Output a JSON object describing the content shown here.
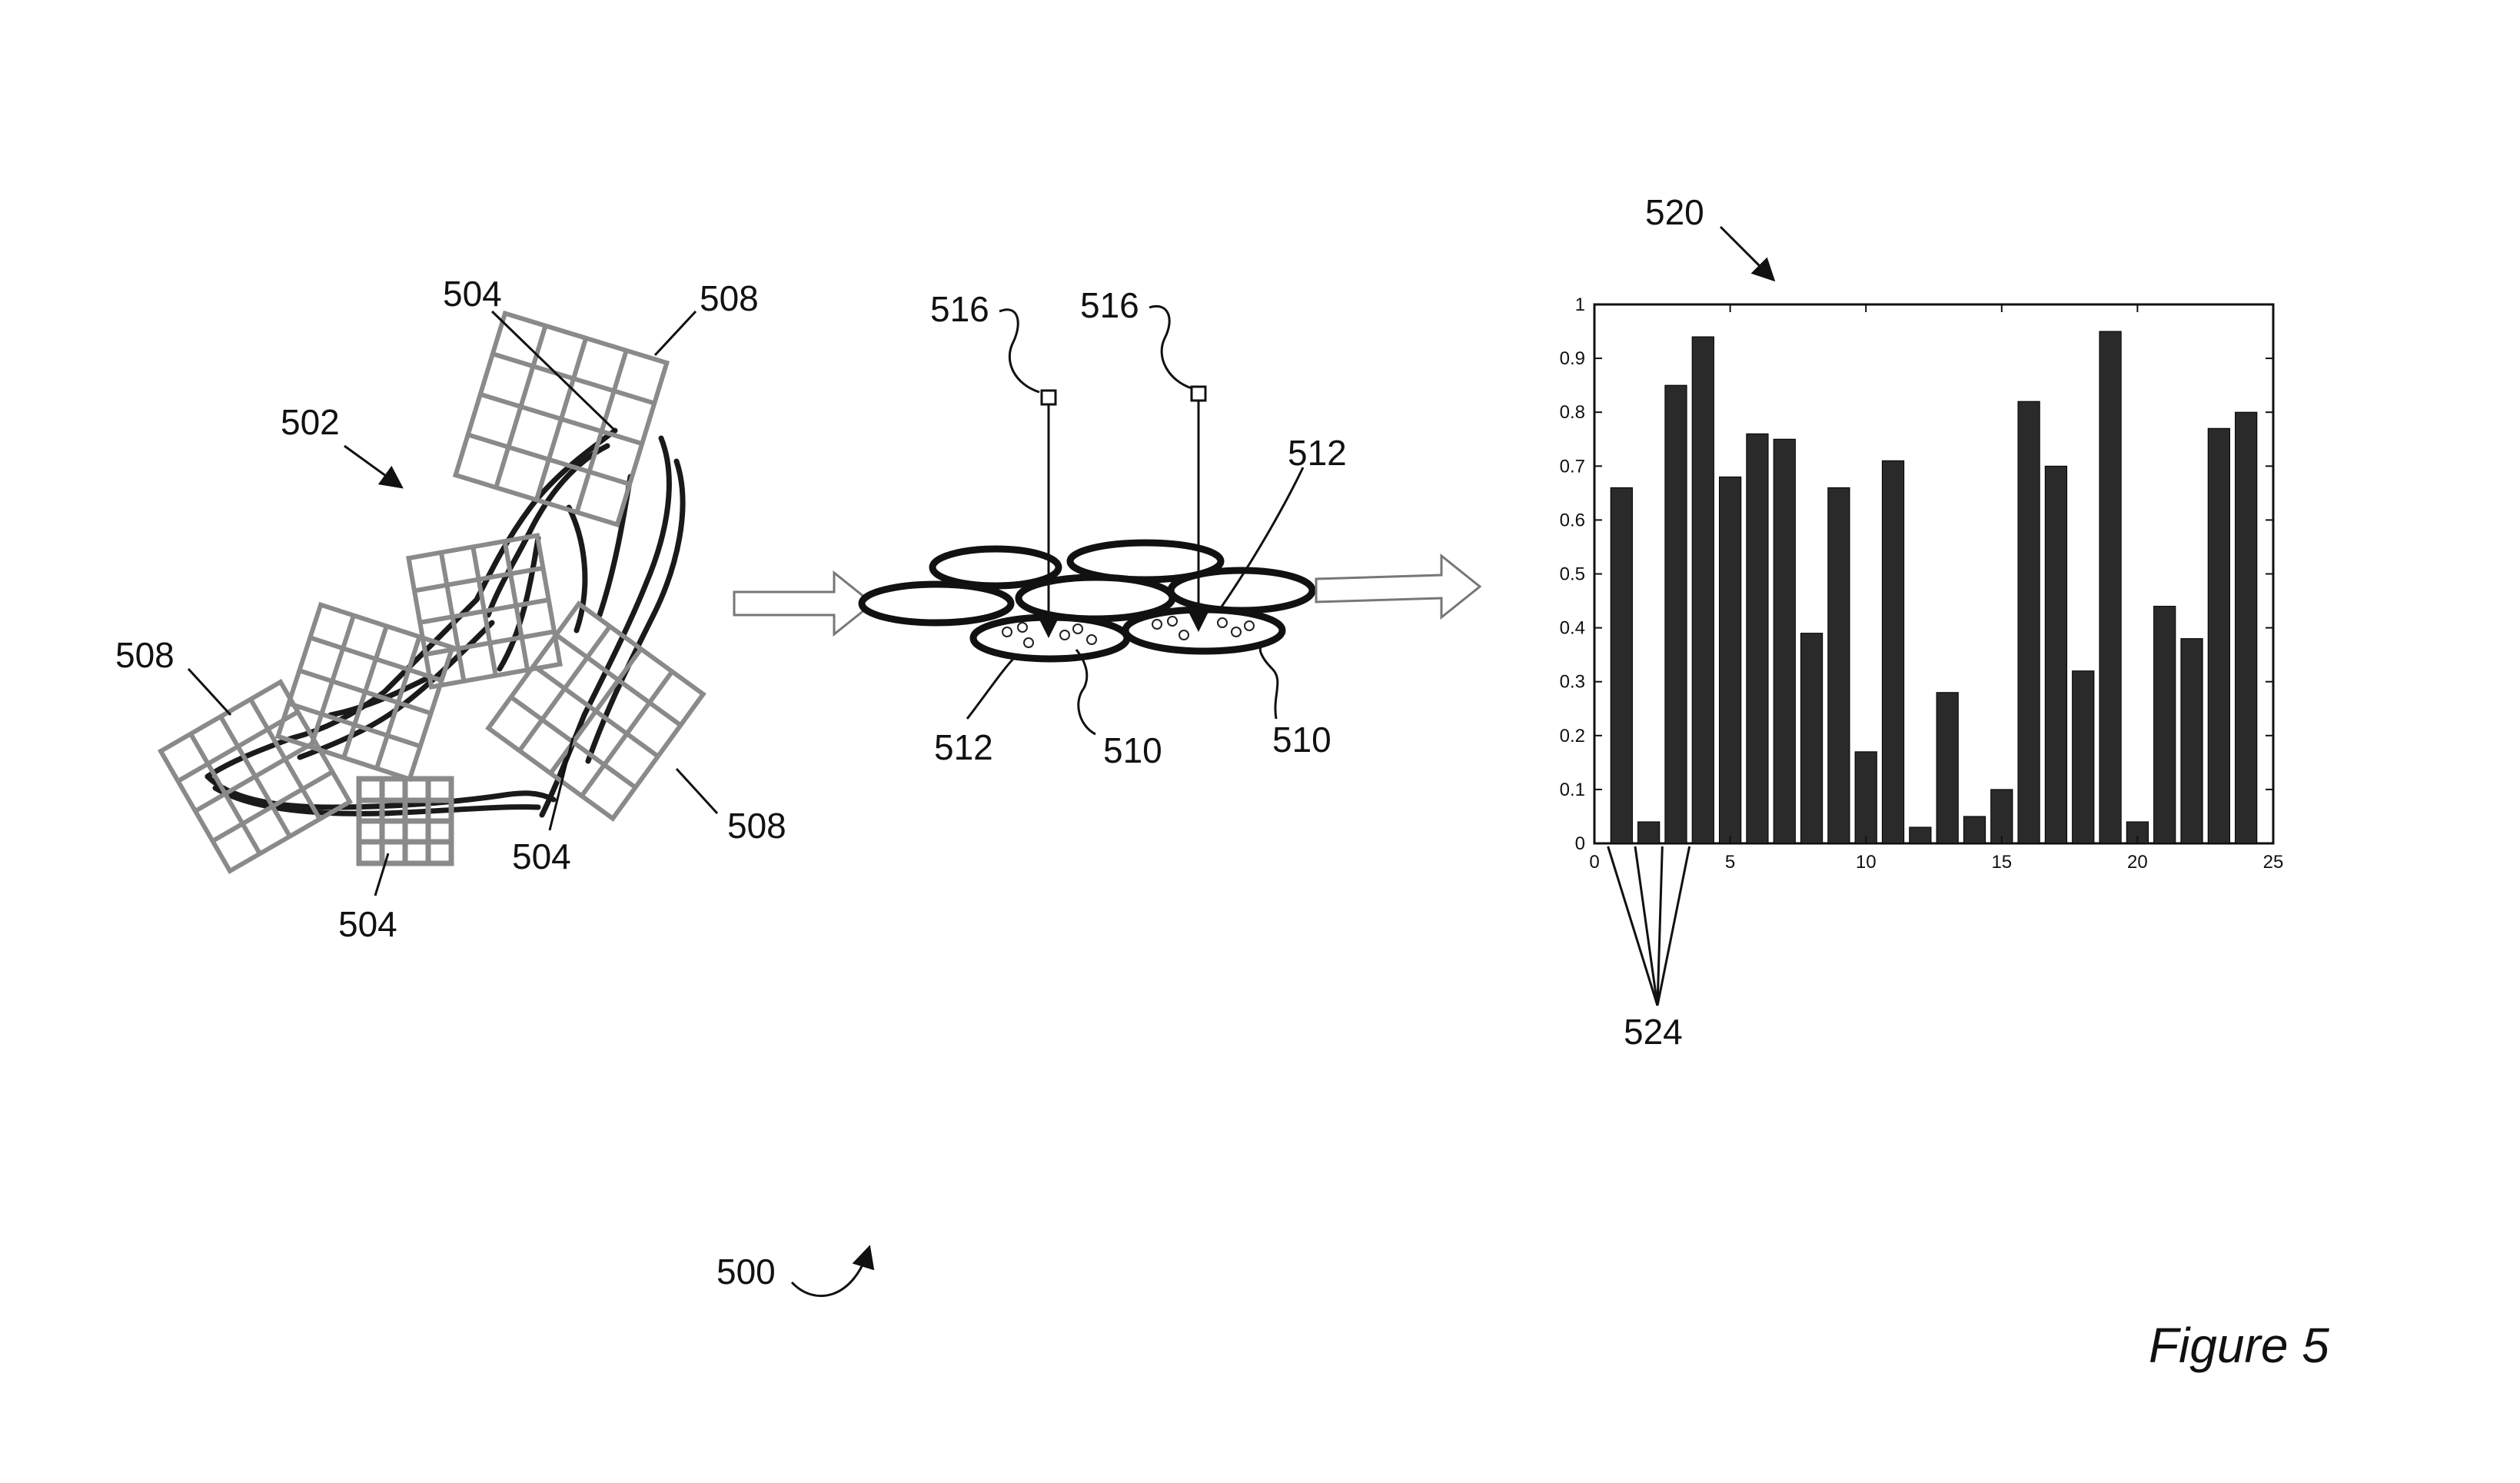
{
  "figure_caption": "Figure 5",
  "labels": {
    "overall": "500",
    "image": "502",
    "region": "504",
    "descriptor_grid": "508",
    "cluster_points": "510",
    "cluster": "512",
    "cluster_center": "516",
    "histogram": "520",
    "histogram_bins": "524"
  },
  "icons": [
    "shoe-sketch",
    "grid-patch",
    "arrow-right",
    "cluster-ellipse",
    "curved-arrow"
  ],
  "chart_data": {
    "type": "bar",
    "title": "",
    "xlabel": "",
    "ylabel": "",
    "xlim": [
      0,
      25
    ],
    "ylim": [
      0,
      1
    ],
    "x_ticks": [
      "0",
      "5",
      "10",
      "15",
      "20",
      "25"
    ],
    "y_ticks": [
      "0",
      "0.1",
      "0.2",
      "0.3",
      "0.4",
      "0.5",
      "0.6",
      "0.7",
      "0.8",
      "0.9",
      "1"
    ],
    "x": [
      1,
      2,
      3,
      4,
      5,
      6,
      7,
      8,
      9,
      10,
      11,
      12,
      13,
      14,
      15,
      16,
      17,
      18,
      19,
      20,
      21,
      22,
      23,
      24
    ],
    "values": [
      0.66,
      0.04,
      0.85,
      0.94,
      0.68,
      0.76,
      0.75,
      0.39,
      0.66,
      0.17,
      0.71,
      0.03,
      0.28,
      0.05,
      0.1,
      0.82,
      0.7,
      0.32,
      0.95,
      0.04,
      0.44,
      0.38,
      0.77,
      0.8
    ],
    "bar_color": "#2a2a2a"
  }
}
